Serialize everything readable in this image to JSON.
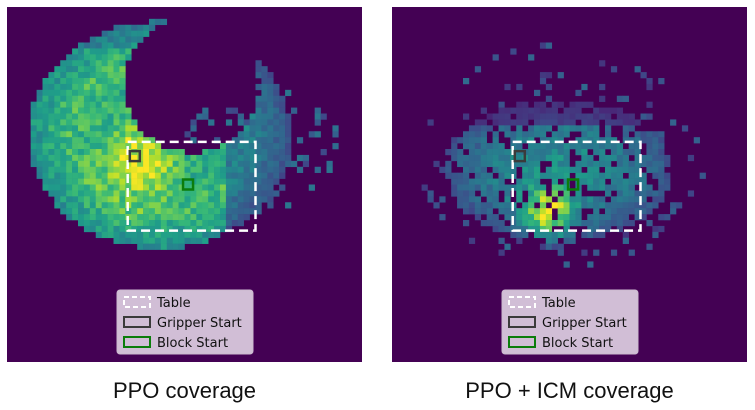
{
  "colors": {
    "background": "#440154",
    "table": "#ffffff",
    "gripper": "#3b3b3b",
    "block": "#0b7d0b",
    "legend_bg": "#d9c8dd"
  },
  "chart_data": [
    {
      "type": "heatmap",
      "caption": "PPO coverage",
      "colormap": "viridis",
      "grid": false,
      "legend": {
        "position": "bottom-center",
        "entries": [
          "Table",
          "Gripper Start",
          "Block Start"
        ]
      },
      "legend_labels": {
        "table": "Table",
        "gripper": "Gripper Start",
        "block": "Block Start"
      },
      "coverage": "crescent",
      "table_region": [
        0.34,
        0.38,
        0.7,
        0.63
      ],
      "gripper_start": [
        0.36,
        0.42
      ],
      "block_start": [
        0.51,
        0.5
      ],
      "hotspot": [
        0.38,
        0.4
      ]
    },
    {
      "type": "heatmap",
      "caption": "PPO + ICM coverage",
      "colormap": "viridis",
      "grid": false,
      "legend": {
        "position": "bottom-center",
        "entries": [
          "Table",
          "Gripper Start",
          "Block Start"
        ]
      },
      "legend_labels": {
        "table": "Table",
        "gripper": "Gripper Start",
        "block": "Block Start"
      },
      "coverage": "sparse",
      "table_region": [
        0.34,
        0.38,
        0.7,
        0.63
      ],
      "gripper_start": [
        0.36,
        0.42
      ],
      "block_start": [
        0.51,
        0.5
      ],
      "hotspot": [
        0.44,
        0.58
      ]
    }
  ]
}
